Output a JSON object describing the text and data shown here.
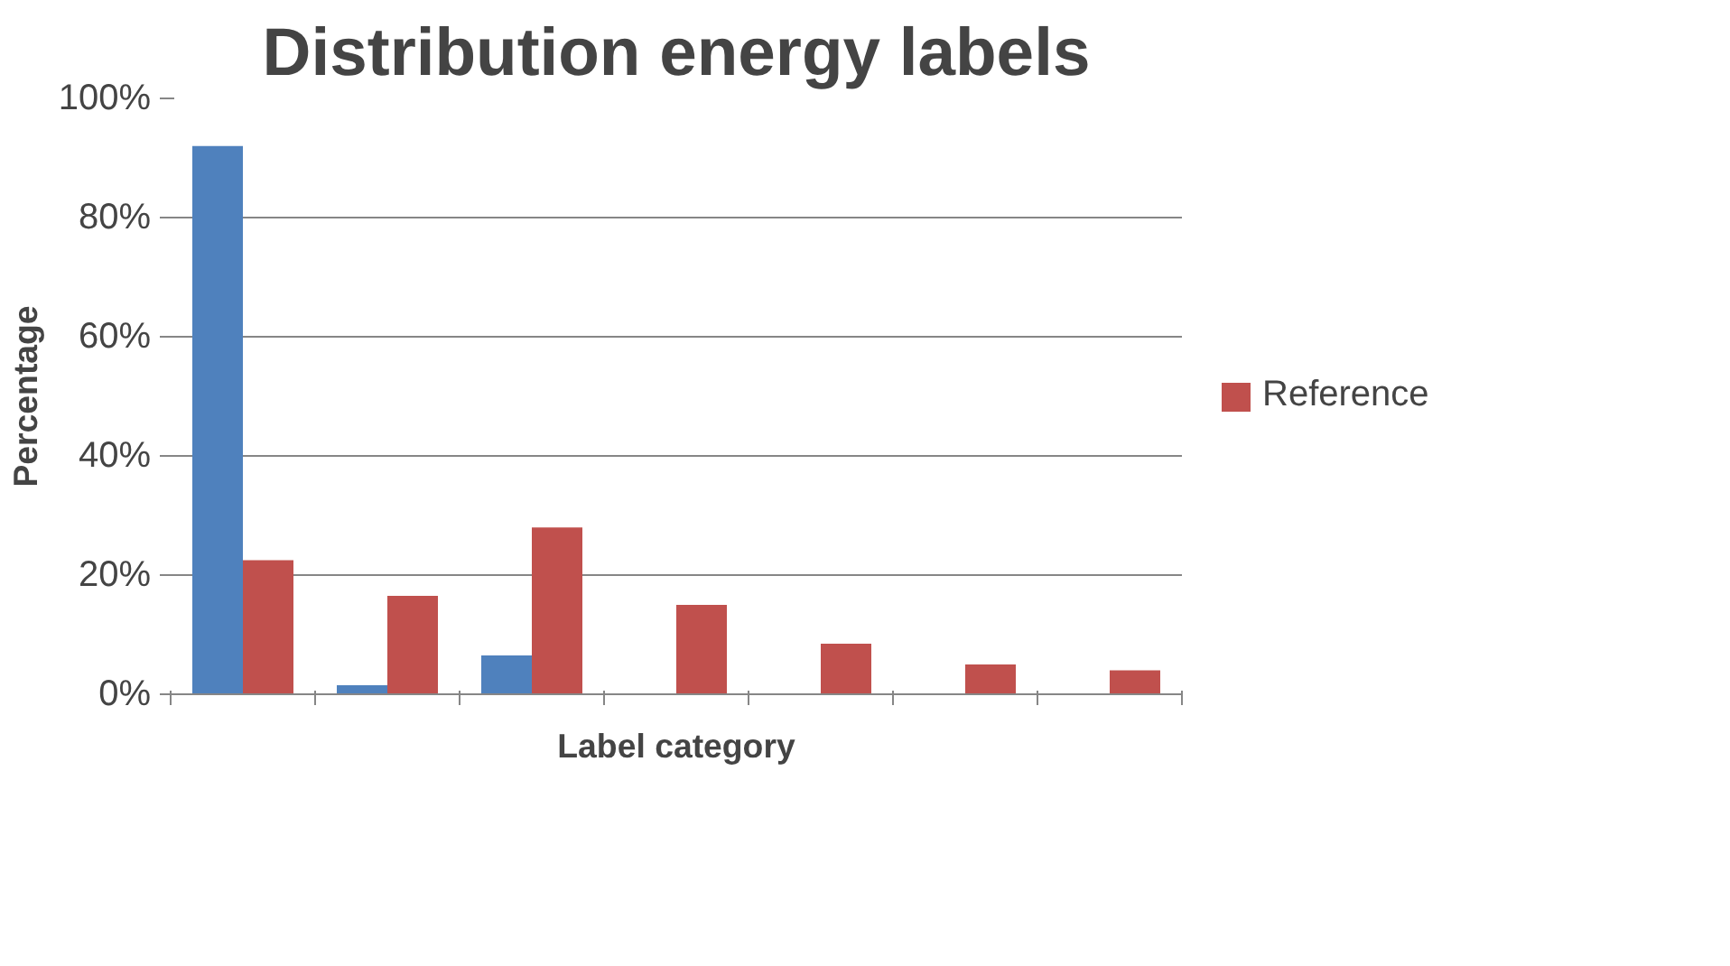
{
  "chart_data": {
    "type": "bar",
    "title": "Distribution energy labels",
    "xlabel": "Label category",
    "ylabel": "Percentage",
    "categories": [
      null,
      null,
      null,
      null,
      null,
      null,
      null
    ],
    "series": [
      {
        "color": "#4f81bd",
        "values": [
          92,
          1.5,
          6.5,
          0,
          0,
          0,
          0
        ]
      },
      {
        "name": "Reference",
        "color": "#c0504d",
        "values": [
          22.5,
          16.5,
          28,
          15,
          8.5,
          5,
          4
        ]
      }
    ],
    "ylim": [
      0,
      100
    ],
    "yticks": [
      {
        "value": 0,
        "label": "0%"
      },
      {
        "value": 20,
        "label": "20%"
      },
      {
        "value": 40,
        "label": "40%"
      },
      {
        "value": 60,
        "label": "60%"
      },
      {
        "value": 80,
        "label": "80%"
      },
      {
        "value": 100,
        "label": "100%"
      }
    ],
    "grid": "y",
    "legend": "right",
    "tick_labels": "y"
  }
}
